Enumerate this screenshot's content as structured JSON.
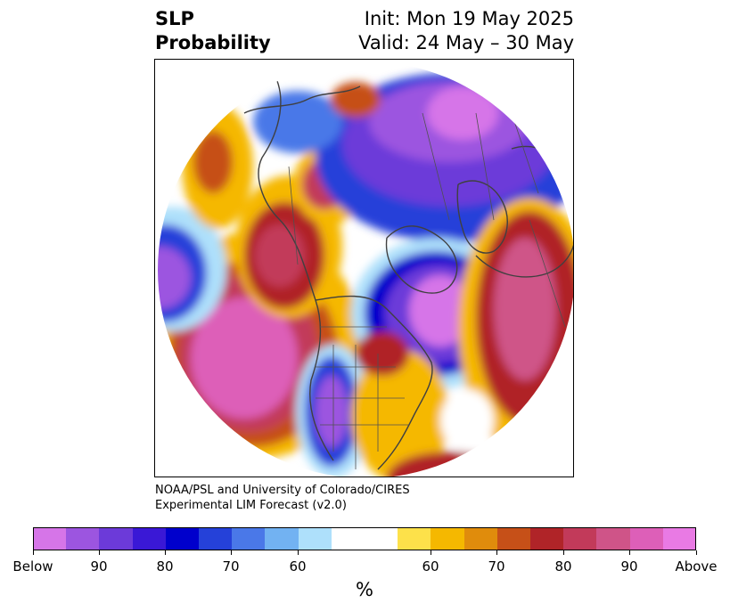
{
  "title": {
    "left_line1": "SLP",
    "left_line2": "Probability",
    "right_line1": "Init: Mon 19 May 2025",
    "right_line2": "Valid: 24 May – 30 May"
  },
  "credit": {
    "line1": "NOAA/PSL and University of Colorado/CIRES",
    "line2": "Experimental LIM Forecast (v2.0)"
  },
  "colorbar": {
    "unit_label": "%",
    "colors": [
      "#d675e8",
      "#9c55e0",
      "#6c3ad9",
      "#3a18d6",
      "#0000cc",
      "#2541d9",
      "#4a78e8",
      "#72b2f2",
      "#aee0fb",
      "#ffffff",
      "#ffffff",
      "#fde14a",
      "#f5b800",
      "#e08c0c",
      "#c65018",
      "#b02428",
      "#c23a5a",
      "#cf5488",
      "#dd5fb8",
      "#e97ae4"
    ],
    "tick_labels": [
      "Below",
      "90",
      "80",
      "70",
      "60",
      "60",
      "70",
      "80",
      "90",
      "Above"
    ]
  },
  "map": {
    "projection": "north-polar-stereographic",
    "region": "Northern Hemisphere (North America and North Pacific)",
    "features": [
      "coastlines",
      "country borders",
      "state/province borders"
    ]
  }
}
